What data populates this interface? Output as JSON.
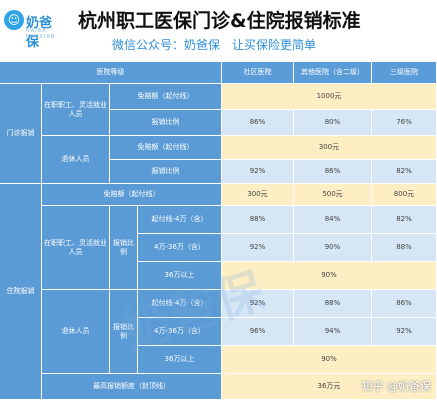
{
  "brand": {
    "name": "奶爸保",
    "tagline": "NAIBA BAOXIAN"
  },
  "title": "杭州职工医保门诊&住院报销标准",
  "subtitle": "微信公众号：奶爸保　让买保险更简单",
  "headers": {
    "tier": "医院等级",
    "community": "社区医院",
    "other": "其他医院（含二级）",
    "level3": "三级医院"
  },
  "outpatient": {
    "section": "门诊报销",
    "employed": "在职职工、灵活就业人员",
    "retired": "退休人员",
    "deductible_label": "免赔额（起付线）",
    "ratio_label": "报销比例",
    "employed_deductible": "1000元",
    "employed_ratio": [
      "86%",
      "80%",
      "76%"
    ],
    "retired_deductible": "300元",
    "retired_ratio": [
      "92%",
      "86%",
      "82%"
    ]
  },
  "inpatient": {
    "section": "住院报销",
    "deductible_label": "免赔额（起付线）",
    "deductible": [
      "300元",
      "500元",
      "800元"
    ],
    "employed": "在职职工、灵活就业人员",
    "retired": "退休人员",
    "ratio_label": "报销比例",
    "ranges": [
      "起付线-4万（含）",
      "4万-36万（含）",
      "36万以上"
    ],
    "employed_rows": [
      [
        "88%",
        "84%",
        "82%"
      ],
      [
        "92%",
        "90%",
        "88%"
      ]
    ],
    "employed_above": "90%",
    "retired_rows": [
      [
        "92%",
        "88%",
        "86%"
      ],
      [
        "96%",
        "94%",
        "92%"
      ]
    ],
    "retired_above": "90%",
    "max_label": "最高报销额度（封顶线）",
    "max_value": "36万元"
  },
  "watermark": "奶爸保",
  "credit": "知乎 @奶爸保"
}
